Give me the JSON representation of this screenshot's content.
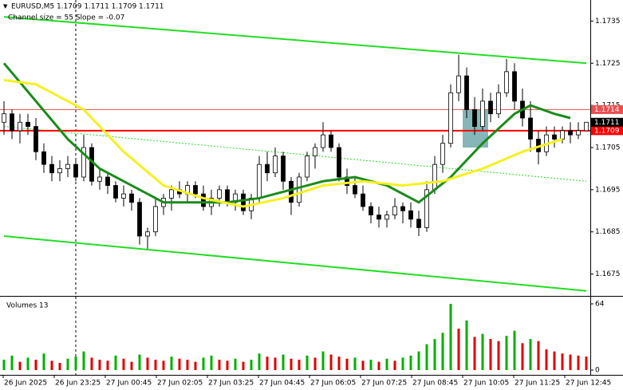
{
  "chart_data": {
    "type": "candlestick",
    "header": "EURUSD,M5  1.1709 1.1711 1.1709 1.1711",
    "indicator_text": "Channel size = 55 Slope = -0.07",
    "volume_label": "Volumes 13",
    "ylim": [
      1.167,
      1.174
    ],
    "yticks": [
      1.1735,
      1.1725,
      1.1715,
      1.1705,
      1.1695,
      1.1685,
      1.1675
    ],
    "volume_ylim": [
      0,
      64
    ],
    "volume_yticks": [
      0,
      64
    ],
    "xticks": [
      {
        "value": 0,
        "label": "26 Jun 2025"
      },
      {
        "value": 6.4,
        "label": "26 Jun 23:25"
      },
      {
        "value": 12.8,
        "label": "27 Jun 00:45"
      },
      {
        "value": 19.2,
        "label": "27 Jun 02:05"
      },
      {
        "value": 25.6,
        "label": "27 Jun 03:25"
      },
      {
        "value": 32,
        "label": "27 Jun 04:45"
      },
      {
        "value": 38.4,
        "label": "27 Jun 06:05"
      },
      {
        "value": 44.8,
        "label": "27 Jun 07:25"
      },
      {
        "value": 51.2,
        "label": "27 Jun 08:45"
      },
      {
        "value": 57.6,
        "label": "27 Jun 10:05"
      },
      {
        "value": 64,
        "label": "27 Jun 11:25"
      },
      {
        "value": 70.4,
        "label": "27 Jun 12:45"
      }
    ],
    "up_color": "#ffffff",
    "down_color": "#000000",
    "volume_up_color": "#00b000",
    "volume_down_color": "#e00000",
    "candles": [
      [
        1.1711,
        1.1716,
        1.1708,
        1.1713
      ],
      [
        1.1713,
        1.1714,
        1.1707,
        1.1709
      ],
      [
        1.1709,
        1.1713,
        1.1706,
        1.1711
      ],
      [
        1.1711,
        1.1713,
        1.1708,
        1.171
      ],
      [
        1.171,
        1.1712,
        1.1702,
        1.1704
      ],
      [
        1.1704,
        1.1706,
        1.1699,
        1.1701
      ],
      [
        1.1701,
        1.1703,
        1.1697,
        1.1699
      ],
      [
        1.1699,
        1.1702,
        1.1697,
        1.17
      ],
      [
        1.17,
        1.1703,
        1.1698,
        1.1701
      ],
      [
        1.1701,
        1.1702,
        1.1697,
        1.1698
      ],
      [
        1.1698,
        1.1708,
        1.1697,
        1.1705
      ],
      [
        1.1705,
        1.1706,
        1.1696,
        1.1697
      ],
      [
        1.1697,
        1.17,
        1.1695,
        1.1698
      ],
      [
        1.1698,
        1.1699,
        1.1694,
        1.1696
      ],
      [
        1.1696,
        1.1697,
        1.1692,
        1.1693
      ],
      [
        1.1693,
        1.1696,
        1.1691,
        1.1694
      ],
      [
        1.1694,
        1.1695,
        1.169,
        1.1692
      ],
      [
        1.1692,
        1.1693,
        1.1682,
        1.1684
      ],
      [
        1.1684,
        1.1686,
        1.1681,
        1.1685
      ],
      [
        1.1685,
        1.1693,
        1.1684,
        1.1691
      ],
      [
        1.1691,
        1.1694,
        1.1689,
        1.1693
      ],
      [
        1.1693,
        1.1696,
        1.169,
        1.1695
      ],
      [
        1.1695,
        1.1697,
        1.1693,
        1.1694
      ],
      [
        1.1694,
        1.1697,
        1.1692,
        1.1696
      ],
      [
        1.1696,
        1.1697,
        1.1693,
        1.1694
      ],
      [
        1.1694,
        1.1696,
        1.169,
        1.1691
      ],
      [
        1.1691,
        1.1695,
        1.1689,
        1.1693
      ],
      [
        1.1693,
        1.1696,
        1.1691,
        1.1695
      ],
      [
        1.1695,
        1.1696,
        1.1691,
        1.1692
      ],
      [
        1.1692,
        1.1695,
        1.169,
        1.1694
      ],
      [
        1.1694,
        1.1695,
        1.1689,
        1.169
      ],
      [
        1.169,
        1.1694,
        1.1688,
        1.1693
      ],
      [
        1.1693,
        1.1703,
        1.1692,
        1.1701
      ],
      [
        1.1701,
        1.1704,
        1.1697,
        1.1699
      ],
      [
        1.1699,
        1.1705,
        1.1698,
        1.1703
      ],
      [
        1.1703,
        1.1704,
        1.1695,
        1.1697
      ],
      [
        1.1697,
        1.1698,
        1.1689,
        1.1692
      ],
      [
        1.1692,
        1.1699,
        1.1691,
        1.1698
      ],
      [
        1.1698,
        1.1704,
        1.1697,
        1.1703
      ],
      [
        1.1703,
        1.1706,
        1.17,
        1.1705
      ],
      [
        1.1705,
        1.1711,
        1.1704,
        1.1708
      ],
      [
        1.1708,
        1.1709,
        1.1704,
        1.1705
      ],
      [
        1.1705,
        1.1706,
        1.1697,
        1.1698
      ],
      [
        1.1698,
        1.17,
        1.1694,
        1.1696
      ],
      [
        1.1696,
        1.1698,
        1.1693,
        1.1694
      ],
      [
        1.1694,
        1.1696,
        1.169,
        1.1691
      ],
      [
        1.1691,
        1.1692,
        1.1687,
        1.1689
      ],
      [
        1.1689,
        1.1691,
        1.1686,
        1.1688
      ],
      [
        1.1688,
        1.169,
        1.1686,
        1.1689
      ],
      [
        1.1689,
        1.1693,
        1.1688,
        1.1691
      ],
      [
        1.1691,
        1.1692,
        1.1687,
        1.169
      ],
      [
        1.169,
        1.1692,
        1.1686,
        1.1688
      ],
      [
        1.1688,
        1.169,
        1.1684,
        1.1686
      ],
      [
        1.1686,
        1.1697,
        1.1685,
        1.1695
      ],
      [
        1.1695,
        1.1703,
        1.1694,
        1.1701
      ],
      [
        1.1701,
        1.1708,
        1.1699,
        1.1706
      ],
      [
        1.1706,
        1.172,
        1.1705,
        1.1718
      ],
      [
        1.1718,
        1.1727,
        1.1716,
        1.1722
      ],
      [
        1.1722,
        1.1724,
        1.1712,
        1.1714
      ],
      [
        1.1714,
        1.1717,
        1.1708,
        1.171
      ],
      [
        1.171,
        1.1719,
        1.1709,
        1.1716
      ],
      [
        1.1716,
        1.1718,
        1.1711,
        1.1713
      ],
      [
        1.1713,
        1.172,
        1.1712,
        1.1718
      ],
      [
        1.1718,
        1.1726,
        1.1717,
        1.1723
      ],
      [
        1.1723,
        1.1725,
        1.1714,
        1.1716
      ],
      [
        1.1716,
        1.1719,
        1.171,
        1.1712
      ],
      [
        1.1712,
        1.1716,
        1.1704,
        1.1707
      ],
      [
        1.1707,
        1.1709,
        1.1701,
        1.1704
      ],
      [
        1.1704,
        1.171,
        1.1703,
        1.1708
      ],
      [
        1.1708,
        1.171,
        1.1705,
        1.1707
      ],
      [
        1.1707,
        1.171,
        1.1706,
        1.1709
      ],
      [
        1.1709,
        1.1711,
        1.1706,
        1.1708
      ],
      [
        1.1708,
        1.1711,
        1.1707,
        1.1709
      ],
      [
        1.1709,
        1.1711,
        1.1709,
        1.1711
      ]
    ],
    "volumes": [
      10,
      14,
      8,
      12,
      10,
      16,
      9,
      7,
      11,
      13,
      18,
      12,
      10,
      9,
      14,
      11,
      8,
      15,
      12,
      10,
      9,
      13,
      11,
      10,
      8,
      12,
      14,
      10,
      9,
      11,
      8,
      10,
      16,
      13,
      12,
      15,
      11,
      10,
      14,
      12,
      18,
      15,
      13,
      11,
      12,
      9,
      10,
      8,
      11,
      9,
      12,
      14,
      18,
      25,
      30,
      36,
      64,
      40,
      48,
      32,
      35,
      30,
      28,
      33,
      38,
      26,
      30,
      28,
      20,
      18,
      16,
      15,
      14,
      13
    ],
    "ma_lines": [
      {
        "color": "#1a8c1a",
        "x": [
          0,
          4,
          8,
          12,
          16,
          20,
          24,
          28,
          32,
          36,
          40,
          44,
          48,
          52,
          56,
          60,
          64,
          66,
          69,
          71
        ],
        "values": [
          1.1725,
          1.1716,
          1.1707,
          1.17,
          1.1696,
          1.1692,
          1.1692,
          1.1692,
          1.1693,
          1.1695,
          1.1697,
          1.1698,
          1.1696,
          1.1692,
          1.1698,
          1.1706,
          1.1713,
          1.1715,
          1.1713,
          1.1712
        ]
      },
      {
        "color": "#f5f020",
        "x": [
          0,
          4,
          10,
          15,
          20,
          25,
          30,
          35,
          40,
          45,
          50,
          55,
          60,
          65,
          70
        ],
        "values": [
          1.1721,
          1.172,
          1.1714,
          1.1704,
          1.1696,
          1.1693,
          1.1691,
          1.1693,
          1.1696,
          1.1697,
          1.1696,
          1.1697,
          1.17,
          1.1704,
          1.1707
        ]
      }
    ],
    "channel_lines": [
      {
        "color": "#22dd22",
        "x": [
          0,
          73
        ],
        "values": [
          1.1736,
          1.1725
        ]
      },
      {
        "color": "#22dd22",
        "x": [
          0,
          73
        ],
        "values": [
          1.1684,
          1.1671
        ]
      }
    ],
    "channel_mid": {
      "color": "#22dd22",
      "x": [
        0,
        73
      ],
      "values": [
        1.171,
        1.1697
      ]
    },
    "zone": {
      "from": 1.1705,
      "to": 1.1714,
      "color": "#5f9ea0"
    },
    "price_lines": [
      {
        "value": 1.1714,
        "color": "#e85050"
      },
      {
        "value": 1.1709,
        "color": "#ff0000"
      }
    ],
    "last_price": 1.1711
  }
}
